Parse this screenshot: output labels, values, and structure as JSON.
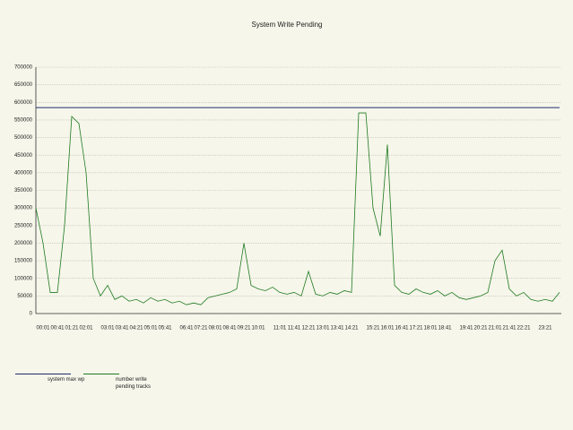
{
  "chart_data": {
    "type": "line",
    "title": "System Write Pending",
    "categories": [
      null,
      "00:01",
      null,
      "00:41",
      null,
      "01:21",
      null,
      "02:01",
      null,
      null,
      "03:01",
      null,
      "03:41",
      null,
      "04:21",
      null,
      "05:01",
      null,
      "05:41",
      null,
      null,
      "06:41",
      null,
      "07:21",
      null,
      "08:01",
      null,
      "08:41",
      null,
      "09:21",
      null,
      "10:01",
      null,
      null,
      "11:01",
      null,
      "11:41",
      null,
      "12:21",
      null,
      "13:01",
      null,
      "13:41",
      null,
      "14:21",
      null,
      null,
      "15:21",
      null,
      "16:01",
      null,
      "16:41",
      null,
      "17:21",
      null,
      "18:01",
      null,
      "18:41",
      null,
      null,
      "19:41",
      null,
      "20:21",
      null,
      "21:01",
      null,
      "21:41",
      null,
      "22:21",
      null,
      null,
      "23:21",
      null,
      null
    ],
    "series": [
      {
        "name": "system max wp",
        "color": "#1c2d6b",
        "values": [
          585000,
          585000,
          585000,
          585000,
          585000,
          585000,
          585000,
          585000,
          585000,
          585000,
          585000,
          585000,
          585000,
          585000,
          585000,
          585000,
          585000,
          585000,
          585000,
          585000,
          585000,
          585000,
          585000,
          585000,
          585000,
          585000,
          585000,
          585000,
          585000,
          585000,
          585000,
          585000,
          585000,
          585000,
          585000,
          585000,
          585000,
          585000,
          585000,
          585000,
          585000,
          585000,
          585000,
          585000,
          585000,
          585000,
          585000,
          585000,
          585000,
          585000,
          585000,
          585000,
          585000,
          585000,
          585000,
          585000,
          585000,
          585000,
          585000,
          585000,
          585000,
          585000,
          585000,
          585000,
          585000,
          585000,
          585000,
          585000,
          585000,
          585000,
          585000,
          585000,
          585000,
          585000
        ]
      },
      {
        "name": "number write pending tracks",
        "color": "#1f7a1f",
        "values": [
          300000,
          200000,
          60000,
          60000,
          250000,
          560000,
          540000,
          400000,
          100000,
          50000,
          80000,
          40000,
          50000,
          35000,
          40000,
          30000,
          45000,
          35000,
          40000,
          30000,
          35000,
          25000,
          30000,
          25000,
          45000,
          50000,
          55000,
          60000,
          70000,
          200000,
          80000,
          70000,
          65000,
          75000,
          60000,
          55000,
          60000,
          50000,
          120000,
          55000,
          50000,
          60000,
          55000,
          65000,
          60000,
          570000,
          570000,
          300000,
          220000,
          480000,
          80000,
          60000,
          55000,
          70000,
          60000,
          55000,
          65000,
          50000,
          60000,
          45000,
          40000,
          45000,
          50000,
          60000,
          150000,
          180000,
          70000,
          50000,
          60000,
          40000,
          35000,
          40000,
          35000,
          60000
        ]
      }
    ],
    "ylim": [
      0,
      700000
    ],
    "yticks": [
      0,
      50000,
      100000,
      150000,
      200000,
      250000,
      300000,
      350000,
      400000,
      450000,
      500000,
      550000,
      600000,
      650000,
      700000
    ],
    "grid": true
  }
}
